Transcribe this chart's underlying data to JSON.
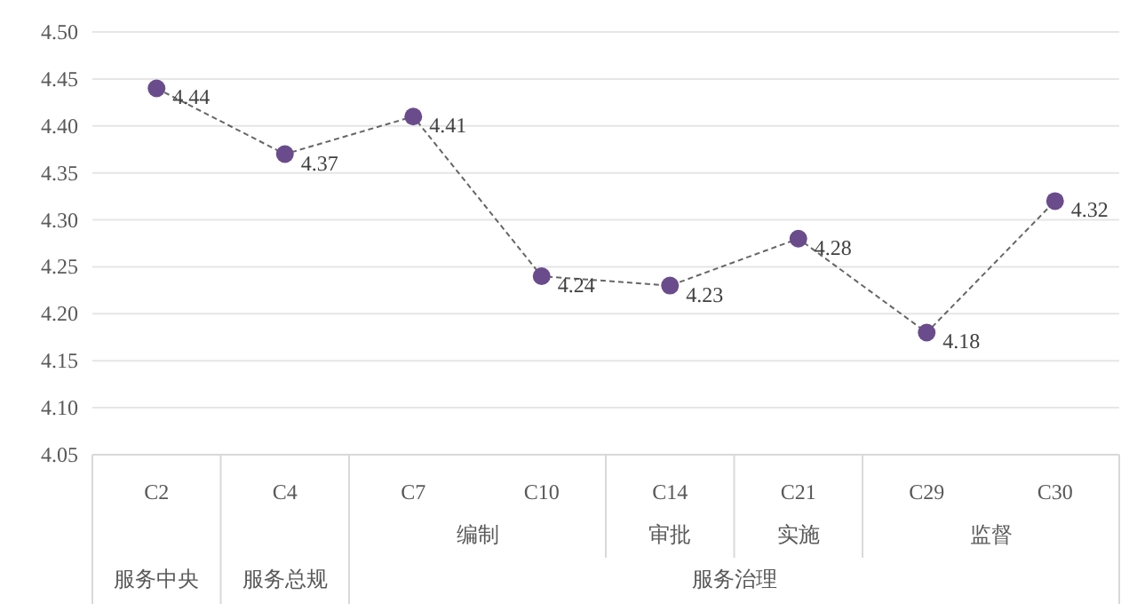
{
  "chart_data": {
    "type": "line",
    "categories": [
      "C2",
      "C4",
      "C7",
      "C10",
      "C14",
      "C21",
      "C29",
      "C30"
    ],
    "series": [
      {
        "color": "#6a4c8c",
        "values": [
          4.44,
          4.37,
          4.41,
          4.24,
          4.23,
          4.28,
          4.18,
          4.32
        ]
      }
    ],
    "ylim": [
      4.05,
      4.5
    ],
    "yticks": [
      4.05,
      {
        "value": 4.1,
        "label": "4.10"
      },
      4.15,
      {
        "value": 4.2,
        "label": "4.20"
      },
      4.25,
      {
        "value": 4.3,
        "label": "4.30"
      },
      4.35,
      {
        "value": 4.4,
        "label": "4.40"
      },
      4.45,
      {
        "value": 4.5,
        "label": "4.50"
      }
    ],
    "annotations": [
      "编制",
      "审批",
      "实施",
      "监督",
      "服务中央",
      "服务总规",
      "服务治理"
    ],
    "grid": "y",
    "marker": "circle",
    "line_style": "dashed",
    "data_labels": true
  }
}
